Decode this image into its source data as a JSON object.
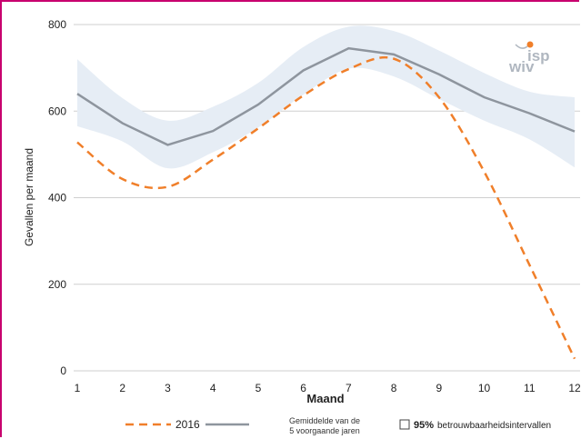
{
  "chart_data": {
    "type": "line",
    "title": "",
    "xlabel": "Maand",
    "ylabel": "Gevallen per maand",
    "x": [
      1,
      2,
      3,
      4,
      5,
      6,
      7,
      8,
      9,
      10,
      11,
      12
    ],
    "xlim": [
      1,
      12
    ],
    "ylim": [
      0,
      800
    ],
    "yticks": [
      0,
      200,
      400,
      600,
      800
    ],
    "grid": "horizontal",
    "band": {
      "upper": [
        720,
        630,
        578,
        610,
        665,
        748,
        795,
        785,
        740,
        688,
        645,
        632
      ],
      "lower": [
        565,
        530,
        468,
        505,
        562,
        638,
        698,
        680,
        628,
        578,
        535,
        470
      ]
    },
    "series": [
      {
        "name": "2016",
        "style": "dashed",
        "color": "#f07f2a",
        "values": [
          528,
          443,
          425,
          488,
          560,
          636,
          697,
          721,
          632,
          460,
          245,
          28
        ]
      },
      {
        "name": "Gemiddelde van de 5 voorgaande jaren",
        "style": "solid",
        "color": "#8e959e",
        "values": [
          640,
          572,
          522,
          554,
          615,
          694,
          745,
          731,
          685,
          632,
          595,
          553
        ]
      }
    ],
    "legend": {
      "placement": "bottom",
      "mean_line1": "Gemiddelde van de",
      "mean_line2": "5 voorgaande jaren",
      "band_bold": "95%",
      "band_text": "betrouwbaarheidsintervallen"
    }
  },
  "logo": {
    "line1": "isp",
    "line2": "wiv"
  },
  "colors": {
    "border": "#c8006e",
    "band": "#e6edf5",
    "grid": "#cfcfcf"
  }
}
